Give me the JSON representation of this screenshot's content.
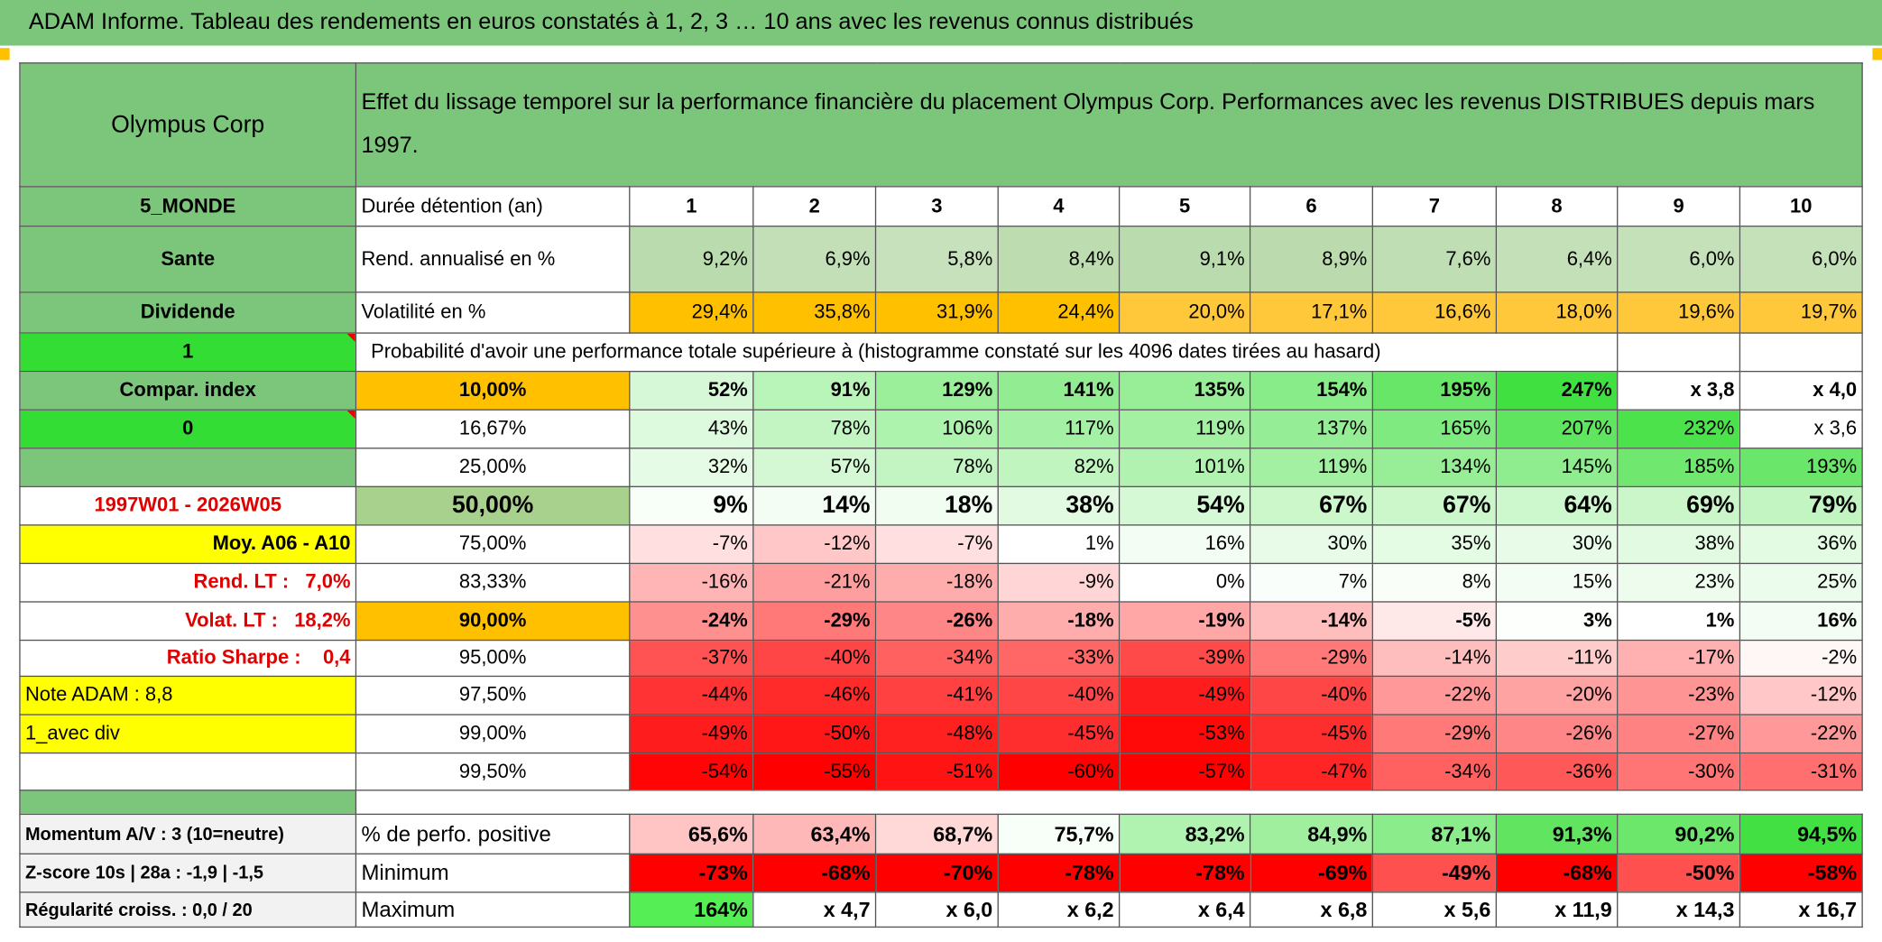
{
  "title": "ADAM Informe. Tableau des rendements en euros constatés à 1, 2, 3 … 10 ans avec les revenus connus distribués",
  "table": {
    "header": {
      "left": "Olympus Corp",
      "description": "Effet du lissage temporel sur la performance financière du placement Olympus Corp. Performances avec les revenus DISTRIBUES depuis mars 1997."
    },
    "rows": [
      [
        "5_MONDE",
        "Durée détention (an)",
        1,
        2,
        3,
        4,
        5,
        6,
        7,
        8,
        9,
        10
      ],
      [
        "Sante",
        "Rend. annualisé en %",
        "9,2%",
        "6,9%",
        "5,8%",
        "8,4%",
        "9,1%",
        "8,9%",
        "7,6%",
        "6,4%",
        "6,0%",
        "6,0%"
      ],
      [
        "Dividende",
        "Volatilité en %",
        "29,4%",
        "35,8%",
        "31,9%",
        "24,4%",
        "20,0%",
        "17,1%",
        "16,6%",
        "18,0%",
        "19,6%",
        "19,7%"
      ],
      [
        1,
        "Probabilité d'avoir une performance totale supérieure à (histogramme constaté sur les 4096 dates tirées au hasard)"
      ],
      [
        "Compar. index",
        "10,00%",
        "52%",
        "91%",
        "129%",
        "141%",
        "135%",
        "154%",
        "195%",
        "247%",
        "x 3,8",
        "x 4,0"
      ],
      [
        0,
        "16,67%",
        "43%",
        "78%",
        "106%",
        "117%",
        "119%",
        "137%",
        "165%",
        "207%",
        "232%",
        "x 3,6"
      ],
      [
        null,
        "25,00%",
        "32%",
        "57%",
        "78%",
        "82%",
        "101%",
        "119%",
        "134%",
        "145%",
        "185%",
        "193%"
      ],
      [
        "1997W01 - 2026W05",
        "50,00%",
        "9%",
        "14%",
        "18%",
        "38%",
        "54%",
        "67%",
        "67%",
        "64%",
        "69%",
        "79%"
      ],
      [
        "Moy. A06 - A10",
        "75,00%",
        "-7%",
        "-12%",
        "-7%",
        "1%",
        "16%",
        "30%",
        "35%",
        "30%",
        "38%",
        "36%"
      ],
      [
        "Rend. LT :   7,0%",
        "83,33%",
        "-16%",
        "-21%",
        "-18%",
        "-9%",
        "0%",
        "7%",
        "8%",
        "15%",
        "23%",
        "25%"
      ],
      [
        "Volat. LT :   18,2%",
        "90,00%",
        "-24%",
        "-29%",
        "-26%",
        "-18%",
        "-19%",
        "-14%",
        "-5%",
        "3%",
        "1%",
        "16%"
      ],
      [
        "Ratio Sharpe :    0,4",
        "95,00%",
        "-37%",
        "-40%",
        "-34%",
        "-33%",
        "-39%",
        "-29%",
        "-14%",
        "-11%",
        "-17%",
        "-2%"
      ],
      [
        "Note ADAM : 8,8",
        "97,50%",
        "-44%",
        "-46%",
        "-41%",
        "-40%",
        "-49%",
        "-40%",
        "-22%",
        "-20%",
        "-23%",
        "-12%"
      ],
      [
        "1_avec div",
        "99,00%",
        "-49%",
        "-50%",
        "-48%",
        "-45%",
        "-53%",
        "-45%",
        "-29%",
        "-26%",
        "-27%",
        "-22%"
      ],
      [
        null,
        "99,50%",
        "-54%",
        "-55%",
        "-51%",
        "-60%",
        "-57%",
        "-47%",
        "-34%",
        "-36%",
        "-30%",
        "-31%"
      ]
    ],
    "footer_rows": [
      [
        "Momentum A/V : 3 (10=neutre)",
        "% de perfo. positive",
        "65,6%",
        "63,4%",
        "68,7%",
        "75,7%",
        "83,2%",
        "84,9%",
        "87,1%",
        "91,3%",
        "90,2%",
        "94,5%"
      ],
      [
        "Z-score 10s | 28a : -1,9 | -1,5",
        "Minimum",
        "-73%",
        "-68%",
        "-70%",
        "-78%",
        "-78%",
        "-69%",
        "-49%",
        "-68%",
        "-50%",
        "-58%"
      ],
      [
        "Régularité croiss. : 0,0 / 20",
        "Maximum",
        "164%",
        "x 4,7",
        "x 6,0",
        "x 6,2",
        "x 6,4",
        "x 6,8",
        "x 5,6",
        "x 11,9",
        "x 14,3",
        "x 16,7"
      ]
    ]
  }
}
